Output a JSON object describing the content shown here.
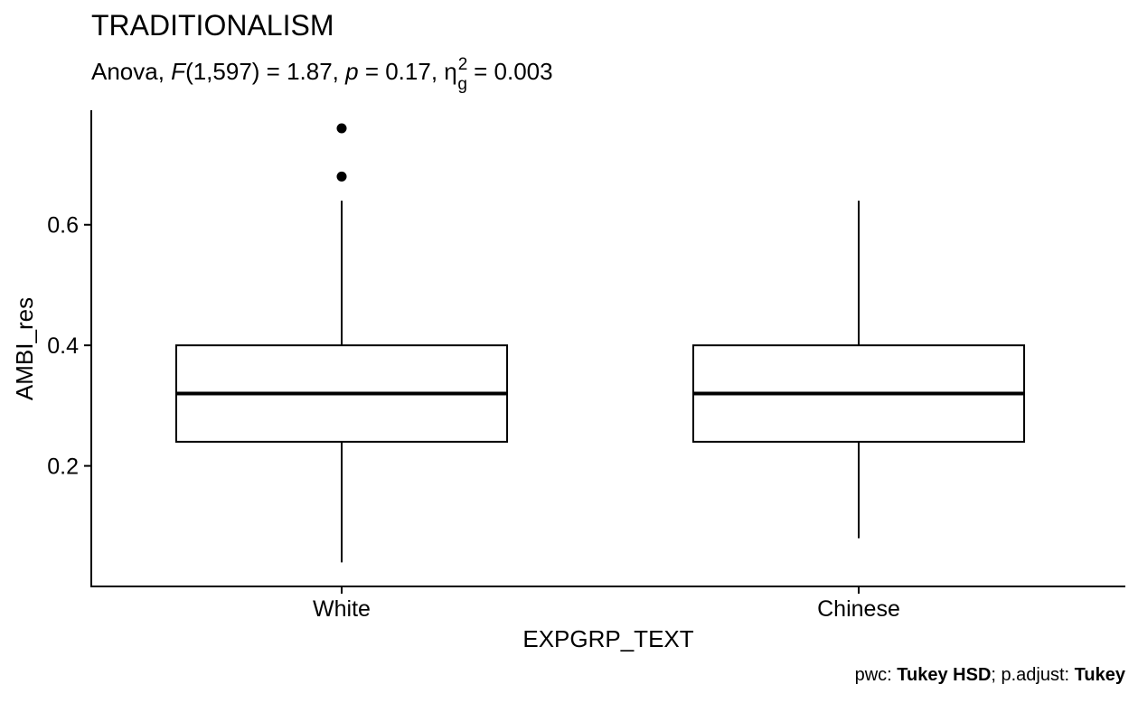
{
  "chart_data": {
    "type": "boxplot",
    "title": "TRADITIONALISM",
    "subtitle": {
      "prefix": "Anova, ",
      "stat_symbol": "F",
      "stat_args": "(1,597) = 1.87, ",
      "p_symbol": "p",
      "p_text": " = 0.17, ",
      "effect_symbol": "η",
      "effect_sub": "g",
      "effect_sup": "2",
      "effect_text": " = 0.003"
    },
    "xlabel": "EXPGRP_TEXT",
    "ylabel": "AMBI_res",
    "ylim": [
      0.0,
      0.79
    ],
    "yticks": [
      0.2,
      0.4,
      0.6
    ],
    "ytick_labels": [
      "0.2",
      "0.4",
      "0.6"
    ],
    "categories": [
      "White",
      "Chinese"
    ],
    "boxes": [
      {
        "category": "White",
        "whisker_low": 0.04,
        "q1": 0.24,
        "median": 0.32,
        "q3": 0.4,
        "whisker_high": 0.64,
        "outliers": [
          0.68,
          0.76
        ]
      },
      {
        "category": "Chinese",
        "whisker_low": 0.08,
        "q1": 0.24,
        "median": 0.32,
        "q3": 0.4,
        "whisker_high": 0.64,
        "outliers": []
      }
    ],
    "caption": {
      "pwc_label": "pwc: ",
      "pwc_value": "Tukey HSD",
      "sep": "; p.adjust: ",
      "adjust_value": "Tukey"
    },
    "grid": false
  }
}
